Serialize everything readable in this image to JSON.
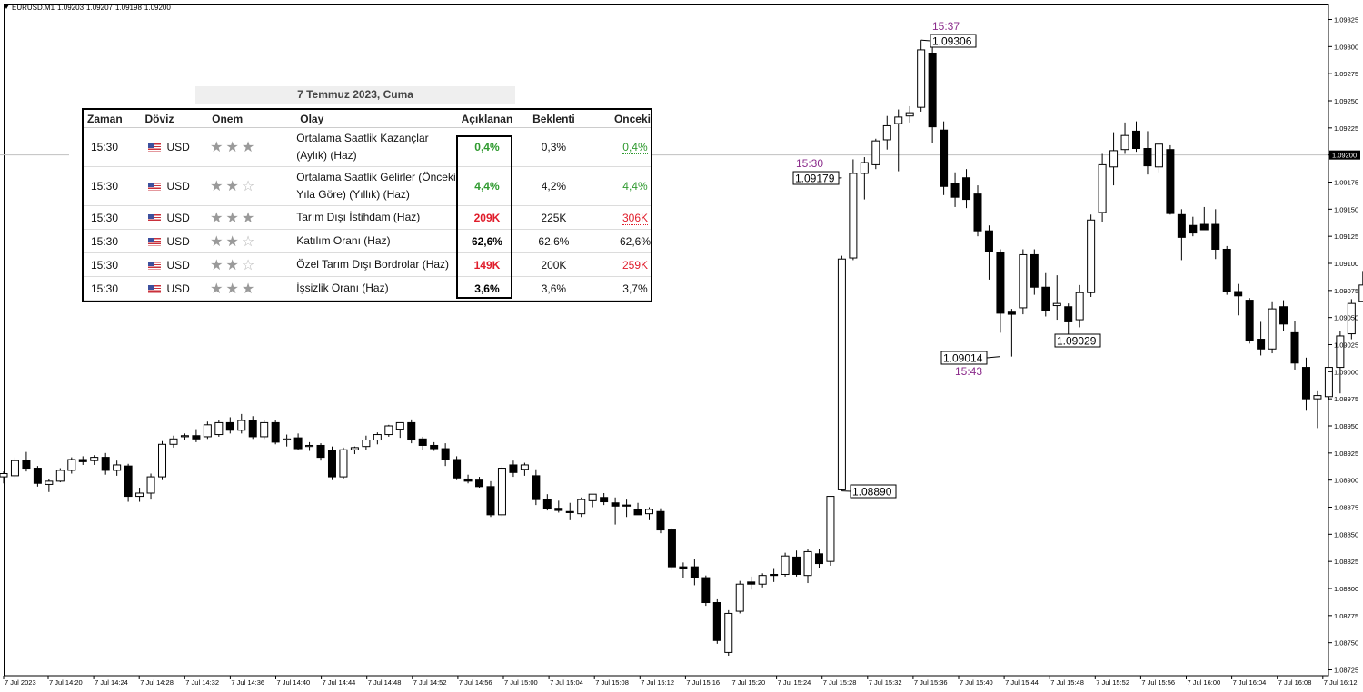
{
  "header": {
    "symbol": "EURUSD.M1",
    "open": "1.09203",
    "high": "1.09207",
    "low": "1.09198",
    "close": "1.09200"
  },
  "calendar": {
    "date_title": "7 Temmuz 2023, Cuma",
    "columns": [
      "Zaman",
      "Döviz",
      "Onem",
      "Olay",
      "Açıklanan",
      "Beklenti",
      "Onceki"
    ],
    "rows": [
      {
        "time": "15:30",
        "currency": "USD",
        "stars": 3,
        "event": "Ortalama Saatlik Kazançlar (Aylık) (Haz)",
        "actual": "0,4%",
        "actual_color": "green",
        "forecast": "0,3%",
        "previous": "0,4%",
        "previous_color": "green"
      },
      {
        "time": "15:30",
        "currency": "USD",
        "stars": 2,
        "event": "Ortalama Saatlik Gelirler (Önceki Yıla Göre) (Yıllık) (Haz)",
        "actual": "4,4%",
        "actual_color": "green",
        "forecast": "4,2%",
        "previous": "4,4%",
        "previous_color": "green"
      },
      {
        "time": "15:30",
        "currency": "USD",
        "stars": 3,
        "event": "Tarım Dışı İstihdam (Haz)",
        "actual": "209K",
        "actual_color": "red",
        "forecast": "225K",
        "previous": "306K",
        "previous_color": "red"
      },
      {
        "time": "15:30",
        "currency": "USD",
        "stars": 2,
        "event": "Katılım Oranı (Haz)",
        "actual": "62,6%",
        "actual_color": "black",
        "forecast": "62,6%",
        "previous": "62,6%",
        "previous_color": "plain"
      },
      {
        "time": "15:30",
        "currency": "USD",
        "stars": 2,
        "event": "Özel Tarım Dışı Bordrolar (Haz)",
        "actual": "149K",
        "actual_color": "red",
        "forecast": "200K",
        "previous": "259K",
        "previous_color": "red"
      },
      {
        "time": "15:30",
        "currency": "USD",
        "stars": 3,
        "event": "İşsizlik Oranı (Haz)",
        "actual": "3,6%",
        "actual_color": "black",
        "forecast": "3,6%",
        "previous": "3,7%",
        "previous_color": "plain"
      }
    ]
  },
  "colors": {
    "bull_body": "#ffffff",
    "bear_body": "#000000",
    "annotation": "#8b2b8b",
    "actual_green": "#2f9a2f",
    "actual_red": "#e01d2b"
  },
  "chart_data": {
    "type": "candlestick",
    "symbol": "EURUSD.M1",
    "ylim": [
      1.08715,
      1.09335
    ],
    "y_ticks": [
      "1.09325",
      "1.09300",
      "1.09275",
      "1.09250",
      "1.09225",
      "1.09200",
      "1.09175",
      "1.09150",
      "1.09125",
      "1.09100",
      "1.09075",
      "1.09050",
      "1.09025",
      "1.09000",
      "1.08975",
      "1.08950",
      "1.08925",
      "1.08900",
      "1.08875",
      "1.08850",
      "1.08825",
      "1.08800",
      "1.08775",
      "1.08750",
      "1.08725"
    ],
    "current_price": "1.09200",
    "x_ticks": [
      "7 Jul 2023",
      "7 Jul 14:20",
      "7 Jul 14:24",
      "7 Jul 14:28",
      "7 Jul 14:32",
      "7 Jul 14:36",
      "7 Jul 14:40",
      "7 Jul 14:44",
      "7 Jul 14:48",
      "7 Jul 14:52",
      "7 Jul 14:56",
      "7 Jul 15:00",
      "7 Jul 15:04",
      "7 Jul 15:08",
      "7 Jul 15:12",
      "7 Jul 15:16",
      "7 Jul 15:20",
      "7 Jul 15:24",
      "7 Jul 15:28",
      "7 Jul 15:32",
      "7 Jul 15:36",
      "7 Jul 15:40",
      "7 Jul 15:44",
      "7 Jul 15:48",
      "7 Jul 15:52",
      "7 Jul 15:56",
      "7 Jul 16:00",
      "7 Jul 16:04",
      "7 Jul 16:08",
      "7 Jul 16:12"
    ],
    "candles": [
      {
        "o": 1.08903,
        "h": 1.08908,
        "l": 1.08897,
        "c": 1.08906
      },
      {
        "o": 1.08904,
        "h": 1.08921,
        "l": 1.08902,
        "c": 1.08918
      },
      {
        "o": 1.08918,
        "h": 1.08926,
        "l": 1.08908,
        "c": 1.08911
      },
      {
        "o": 1.08911,
        "h": 1.08913,
        "l": 1.08894,
        "c": 1.08897
      },
      {
        "o": 1.08896,
        "h": 1.08901,
        "l": 1.08889,
        "c": 1.08899
      },
      {
        "o": 1.08899,
        "h": 1.08911,
        "l": 1.08898,
        "c": 1.08909
      },
      {
        "o": 1.08909,
        "h": 1.08921,
        "l": 1.08906,
        "c": 1.08919
      },
      {
        "o": 1.08919,
        "h": 1.08922,
        "l": 1.08914,
        "c": 1.08917
      },
      {
        "o": 1.08918,
        "h": 1.08923,
        "l": 1.08914,
        "c": 1.08921
      },
      {
        "o": 1.08921,
        "h": 1.08925,
        "l": 1.08905,
        "c": 1.08909
      },
      {
        "o": 1.08909,
        "h": 1.08918,
        "l": 1.08904,
        "c": 1.08914
      },
      {
        "o": 1.08913,
        "h": 1.08915,
        "l": 1.0888,
        "c": 1.08885
      },
      {
        "o": 1.08885,
        "h": 1.08893,
        "l": 1.0888,
        "c": 1.08888
      },
      {
        "o": 1.08888,
        "h": 1.08906,
        "l": 1.08882,
        "c": 1.08903
      },
      {
        "o": 1.08903,
        "h": 1.08936,
        "l": 1.089,
        "c": 1.08933
      },
      {
        "o": 1.08933,
        "h": 1.08941,
        "l": 1.0893,
        "c": 1.08938
      },
      {
        "o": 1.0894,
        "h": 1.08943,
        "l": 1.08937,
        "c": 1.08941
      },
      {
        "o": 1.08941,
        "h": 1.08947,
        "l": 1.08935,
        "c": 1.08938
      },
      {
        "o": 1.0894,
        "h": 1.08954,
        "l": 1.08938,
        "c": 1.08951
      },
      {
        "o": 1.08942,
        "h": 1.08955,
        "l": 1.0894,
        "c": 1.08953
      },
      {
        "o": 1.08953,
        "h": 1.08958,
        "l": 1.08943,
        "c": 1.08946
      },
      {
        "o": 1.08946,
        "h": 1.08961,
        "l": 1.08943,
        "c": 1.08955
      },
      {
        "o": 1.08955,
        "h": 1.08959,
        "l": 1.08938,
        "c": 1.0894
      },
      {
        "o": 1.0894,
        "h": 1.08955,
        "l": 1.08938,
        "c": 1.08953
      },
      {
        "o": 1.08953,
        "h": 1.08955,
        "l": 1.08933,
        "c": 1.08935
      },
      {
        "o": 1.08937,
        "h": 1.08942,
        "l": 1.08931,
        "c": 1.08938
      },
      {
        "o": 1.08939,
        "h": 1.08943,
        "l": 1.08928,
        "c": 1.08929
      },
      {
        "o": 1.08931,
        "h": 1.08935,
        "l": 1.08927,
        "c": 1.08932
      },
      {
        "o": 1.08932,
        "h": 1.08934,
        "l": 1.08918,
        "c": 1.08921
      },
      {
        "o": 1.08927,
        "h": 1.08931,
        "l": 1.089,
        "c": 1.08903
      },
      {
        "o": 1.08903,
        "h": 1.0893,
        "l": 1.08901,
        "c": 1.08928
      },
      {
        "o": 1.08928,
        "h": 1.08931,
        "l": 1.08924,
        "c": 1.0893
      },
      {
        "o": 1.08931,
        "h": 1.08941,
        "l": 1.08928,
        "c": 1.08937
      },
      {
        "o": 1.08937,
        "h": 1.08944,
        "l": 1.08933,
        "c": 1.08942
      },
      {
        "o": 1.08942,
        "h": 1.08951,
        "l": 1.0894,
        "c": 1.0895
      },
      {
        "o": 1.08947,
        "h": 1.08951,
        "l": 1.08939,
        "c": 1.08953
      },
      {
        "o": 1.08953,
        "h": 1.08956,
        "l": 1.08934,
        "c": 1.08937
      },
      {
        "o": 1.08938,
        "h": 1.0894,
        "l": 1.08928,
        "c": 1.08932
      },
      {
        "o": 1.08932,
        "h": 1.08935,
        "l": 1.08927,
        "c": 1.08929
      },
      {
        "o": 1.08929,
        "h": 1.08934,
        "l": 1.08913,
        "c": 1.08919
      },
      {
        "o": 1.08919,
        "h": 1.08922,
        "l": 1.089,
        "c": 1.08902
      },
      {
        "o": 1.08901,
        "h": 1.08905,
        "l": 1.08897,
        "c": 1.08899
      },
      {
        "o": 1.089,
        "h": 1.08903,
        "l": 1.08893,
        "c": 1.08894
      },
      {
        "o": 1.08894,
        "h": 1.08899,
        "l": 1.08866,
        "c": 1.08868
      },
      {
        "o": 1.08868,
        "h": 1.08913,
        "l": 1.08866,
        "c": 1.08911
      },
      {
        "o": 1.08914,
        "h": 1.08918,
        "l": 1.08903,
        "c": 1.08907
      },
      {
        "o": 1.0891,
        "h": 1.08916,
        "l": 1.08904,
        "c": 1.08914
      },
      {
        "o": 1.08904,
        "h": 1.0891,
        "l": 1.08877,
        "c": 1.08882
      },
      {
        "o": 1.08882,
        "h": 1.08887,
        "l": 1.08872,
        "c": 1.08874
      },
      {
        "o": 1.08874,
        "h": 1.08881,
        "l": 1.0887,
        "c": 1.08872
      },
      {
        "o": 1.08871,
        "h": 1.08879,
        "l": 1.08863,
        "c": 1.0887
      },
      {
        "o": 1.08869,
        "h": 1.08884,
        "l": 1.08866,
        "c": 1.08882
      },
      {
        "o": 1.08881,
        "h": 1.08887,
        "l": 1.08875,
        "c": 1.08887
      },
      {
        "o": 1.08884,
        "h": 1.08888,
        "l": 1.08877,
        "c": 1.0888
      },
      {
        "o": 1.08879,
        "h": 1.08884,
        "l": 1.08859,
        "c": 1.08876
      },
      {
        "o": 1.08877,
        "h": 1.08882,
        "l": 1.08866,
        "c": 1.08876
      },
      {
        "o": 1.08873,
        "h": 1.08879,
        "l": 1.08868,
        "c": 1.08868
      },
      {
        "o": 1.08869,
        "h": 1.08875,
        "l": 1.08863,
        "c": 1.08873
      },
      {
        "o": 1.08871,
        "h": 1.08874,
        "l": 1.08851,
        "c": 1.08854
      },
      {
        "o": 1.08854,
        "h": 1.08856,
        "l": 1.08817,
        "c": 1.0882
      },
      {
        "o": 1.0882,
        "h": 1.08824,
        "l": 1.0881,
        "c": 1.08818
      },
      {
        "o": 1.0882,
        "h": 1.08827,
        "l": 1.08803,
        "c": 1.0881
      },
      {
        "o": 1.0881,
        "h": 1.08812,
        "l": 1.08784,
        "c": 1.08787
      },
      {
        "o": 1.08787,
        "h": 1.0879,
        "l": 1.08749,
        "c": 1.08752
      },
      {
        "o": 1.08741,
        "h": 1.0878,
        "l": 1.08738,
        "c": 1.08777
      },
      {
        "o": 1.08779,
        "h": 1.08807,
        "l": 1.08777,
        "c": 1.08804
      },
      {
        "o": 1.08806,
        "h": 1.08811,
        "l": 1.08799,
        "c": 1.08804
      },
      {
        "o": 1.08804,
        "h": 1.08814,
        "l": 1.08801,
        "c": 1.08812
      },
      {
        "o": 1.08813,
        "h": 1.08818,
        "l": 1.08806,
        "c": 1.08812
      },
      {
        "o": 1.08813,
        "h": 1.08833,
        "l": 1.08811,
        "c": 1.0883
      },
      {
        "o": 1.08829,
        "h": 1.08835,
        "l": 1.08811,
        "c": 1.08813
      },
      {
        "o": 1.08812,
        "h": 1.08836,
        "l": 1.08805,
        "c": 1.08834
      },
      {
        "o": 1.08832,
        "h": 1.08836,
        "l": 1.08819,
        "c": 1.08823
      },
      {
        "o": 1.08825,
        "h": 1.08885,
        "l": 1.08821,
        "c": 1.08885
      },
      {
        "o": 1.08891,
        "h": 1.09107,
        "l": 1.0889,
        "c": 1.09104
      },
      {
        "o": 1.09105,
        "h": 1.09196,
        "l": 1.09103,
        "c": 1.09183
      },
      {
        "o": 1.09183,
        "h": 1.09198,
        "l": 1.09159,
        "c": 1.09193
      },
      {
        "o": 1.09191,
        "h": 1.09215,
        "l": 1.09187,
        "c": 1.09213
      },
      {
        "o": 1.09214,
        "h": 1.09236,
        "l": 1.09205,
        "c": 1.09227
      },
      {
        "o": 1.09229,
        "h": 1.09242,
        "l": 1.09185,
        "c": 1.09235
      },
      {
        "o": 1.09236,
        "h": 1.09245,
        "l": 1.0923,
        "c": 1.09239
      },
      {
        "o": 1.09244,
        "h": 1.09306,
        "l": 1.0924,
        "c": 1.09297
      },
      {
        "o": 1.09294,
        "h": 1.093,
        "l": 1.09211,
        "c": 1.09226
      },
      {
        "o": 1.09223,
        "h": 1.09231,
        "l": 1.09163,
        "c": 1.09171
      },
      {
        "o": 1.09174,
        "h": 1.09184,
        "l": 1.09152,
        "c": 1.09161
      },
      {
        "o": 1.09179,
        "h": 1.09187,
        "l": 1.09151,
        "c": 1.09159
      },
      {
        "o": 1.09164,
        "h": 1.09172,
        "l": 1.09125,
        "c": 1.0913
      },
      {
        "o": 1.0913,
        "h": 1.09135,
        "l": 1.09085,
        "c": 1.09111
      },
      {
        "o": 1.0911,
        "h": 1.09113,
        "l": 1.09036,
        "c": 1.09054
      },
      {
        "o": 1.09055,
        "h": 1.09058,
        "l": 1.09014,
        "c": 1.09053
      },
      {
        "o": 1.09059,
        "h": 1.09113,
        "l": 1.09053,
        "c": 1.09108
      },
      {
        "o": 1.09108,
        "h": 1.09113,
        "l": 1.09071,
        "c": 1.09078
      },
      {
        "o": 1.09078,
        "h": 1.09091,
        "l": 1.09051,
        "c": 1.09056
      },
      {
        "o": 1.09061,
        "h": 1.09089,
        "l": 1.09048,
        "c": 1.09063
      },
      {
        "o": 1.0906,
        "h": 1.09063,
        "l": 1.09029,
        "c": 1.09046
      },
      {
        "o": 1.09048,
        "h": 1.0908,
        "l": 1.09041,
        "c": 1.09073
      },
      {
        "o": 1.09073,
        "h": 1.09145,
        "l": 1.09069,
        "c": 1.0914
      },
      {
        "o": 1.09147,
        "h": 1.09201,
        "l": 1.09138,
        "c": 1.09191
      },
      {
        "o": 1.09189,
        "h": 1.09221,
        "l": 1.09172,
        "c": 1.09204
      },
      {
        "o": 1.09205,
        "h": 1.0923,
        "l": 1.09201,
        "c": 1.09218
      },
      {
        "o": 1.09222,
        "h": 1.09231,
        "l": 1.09203,
        "c": 1.09206
      },
      {
        "o": 1.09206,
        "h": 1.09222,
        "l": 1.09182,
        "c": 1.0919
      },
      {
        "o": 1.09189,
        "h": 1.0921,
        "l": 1.09184,
        "c": 1.0921
      },
      {
        "o": 1.09205,
        "h": 1.09209,
        "l": 1.09145,
        "c": 1.09146
      },
      {
        "o": 1.09145,
        "h": 1.0915,
        "l": 1.09103,
        "c": 1.09124
      },
      {
        "o": 1.09135,
        "h": 1.09143,
        "l": 1.09125,
        "c": 1.09128
      },
      {
        "o": 1.09136,
        "h": 1.09152,
        "l": 1.09131,
        "c": 1.09131
      },
      {
        "o": 1.09136,
        "h": 1.0915,
        "l": 1.09104,
        "c": 1.09113
      },
      {
        "o": 1.09113,
        "h": 1.09116,
        "l": 1.09071,
        "c": 1.09074
      },
      {
        "o": 1.09074,
        "h": 1.09081,
        "l": 1.09052,
        "c": 1.0907
      },
      {
        "o": 1.09066,
        "h": 1.09068,
        "l": 1.09026,
        "c": 1.09029
      },
      {
        "o": 1.0903,
        "h": 1.09046,
        "l": 1.09015,
        "c": 1.09021
      },
      {
        "o": 1.09021,
        "h": 1.09065,
        "l": 1.09017,
        "c": 1.09058
      },
      {
        "o": 1.0906,
        "h": 1.09066,
        "l": 1.09038,
        "c": 1.09044
      },
      {
        "o": 1.09036,
        "h": 1.09047,
        "l": 1.09002,
        "c": 1.09008
      },
      {
        "o": 1.09004,
        "h": 1.09013,
        "l": 1.08964,
        "c": 1.08975
      },
      {
        "o": 1.08975,
        "h": 1.08982,
        "l": 1.08948,
        "c": 1.08978
      },
      {
        "o": 1.08977,
        "h": 1.09004,
        "l": 1.08974,
        "c": 1.09004
      },
      {
        "o": 1.09004,
        "h": 1.09038,
        "l": 1.0898,
        "c": 1.09033
      },
      {
        "o": 1.09035,
        "h": 1.09067,
        "l": 1.0903,
        "c": 1.09063
      },
      {
        "o": 1.09065,
        "h": 1.09093,
        "l": 1.09064,
        "c": 1.0908
      }
    ],
    "annotations": [
      {
        "time": "15:30",
        "price": "1.09179"
      },
      {
        "price": "1.08890"
      },
      {
        "time": "15:37",
        "price": "1.09306"
      },
      {
        "time": "15:43",
        "price": "1.09014"
      },
      {
        "price": "1.09029"
      }
    ]
  }
}
